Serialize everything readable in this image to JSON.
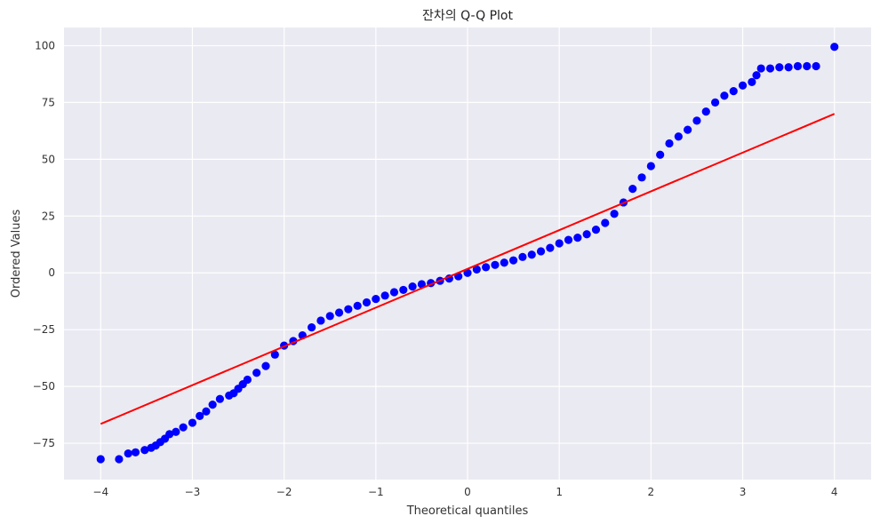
{
  "chart_data": {
    "type": "scatter",
    "title": "잔차의 Q-Q Plot",
    "xlabel": "Theoretical quantiles",
    "ylabel": "Ordered Values",
    "xlim": [
      -4.4,
      4.4
    ],
    "ylim": [
      -91,
      108
    ],
    "xticks": [
      -4,
      -3,
      -2,
      -1,
      0,
      1,
      2,
      3,
      4
    ],
    "xtick_labels": [
      "−4",
      "−3",
      "−2",
      "−1",
      "0",
      "1",
      "2",
      "3",
      "4"
    ],
    "yticks": [
      -75,
      -50,
      -25,
      0,
      25,
      50,
      75,
      100
    ],
    "ytick_labels": [
      "−75",
      "−50",
      "−25",
      "0",
      "25",
      "50",
      "75",
      "100"
    ],
    "grid": true,
    "colors": {
      "background": "#eaeaf2",
      "grid": "#ffffff",
      "points": "#0000ff",
      "fit_line": "#ff0000"
    },
    "series": [
      {
        "kind": "points",
        "points": [
          [
            -4.0,
            -82
          ],
          [
            -3.8,
            -82
          ],
          [
            -3.7,
            -79.5
          ],
          [
            -3.62,
            -79
          ],
          [
            -3.52,
            -78
          ],
          [
            -3.45,
            -77
          ],
          [
            -3.4,
            -76
          ],
          [
            -3.35,
            -74.5
          ],
          [
            -3.3,
            -73
          ],
          [
            -3.25,
            -71
          ],
          [
            -3.18,
            -70
          ],
          [
            -3.1,
            -68
          ],
          [
            -3.0,
            -66
          ],
          [
            -2.92,
            -63
          ],
          [
            -2.85,
            -61
          ],
          [
            -2.78,
            -58
          ],
          [
            -2.7,
            -55.5
          ],
          [
            -2.6,
            -54
          ],
          [
            -2.55,
            -53
          ],
          [
            -2.5,
            -51
          ],
          [
            -2.45,
            -49
          ],
          [
            -2.4,
            -47
          ],
          [
            -2.3,
            -44
          ],
          [
            -2.2,
            -41
          ],
          [
            -2.1,
            -36
          ],
          [
            -2.0,
            -32
          ],
          [
            -1.9,
            -30
          ],
          [
            -1.8,
            -27.5
          ],
          [
            -1.7,
            -24
          ],
          [
            -1.6,
            -21
          ],
          [
            -1.5,
            -19
          ],
          [
            -1.4,
            -17.5
          ],
          [
            -1.3,
            -16
          ],
          [
            -1.2,
            -14.5
          ],
          [
            -1.1,
            -13
          ],
          [
            -1.0,
            -11.5
          ],
          [
            -0.9,
            -10
          ],
          [
            -0.8,
            -8.5
          ],
          [
            -0.7,
            -7.5
          ],
          [
            -0.6,
            -6
          ],
          [
            -0.5,
            -5
          ],
          [
            -0.4,
            -4.5
          ],
          [
            -0.3,
            -3.5
          ],
          [
            -0.2,
            -2.5
          ],
          [
            -0.1,
            -1.5
          ],
          [
            0.0,
            0
          ],
          [
            0.1,
            1.5
          ],
          [
            0.2,
            2.5
          ],
          [
            0.3,
            3.5
          ],
          [
            0.4,
            4.5
          ],
          [
            0.5,
            5.5
          ],
          [
            0.6,
            7
          ],
          [
            0.7,
            8
          ],
          [
            0.8,
            9.5
          ],
          [
            0.9,
            11
          ],
          [
            1.0,
            13
          ],
          [
            1.1,
            14.5
          ],
          [
            1.2,
            15.5
          ],
          [
            1.3,
            17
          ],
          [
            1.4,
            19
          ],
          [
            1.5,
            22
          ],
          [
            1.6,
            26
          ],
          [
            1.7,
            31
          ],
          [
            1.8,
            37
          ],
          [
            1.9,
            42
          ],
          [
            2.0,
            47
          ],
          [
            2.1,
            52
          ],
          [
            2.2,
            57
          ],
          [
            2.3,
            60
          ],
          [
            2.4,
            63
          ],
          [
            2.5,
            67
          ],
          [
            2.6,
            71
          ],
          [
            2.7,
            75
          ],
          [
            2.8,
            78
          ],
          [
            2.9,
            80
          ],
          [
            3.0,
            82.5
          ],
          [
            3.1,
            84
          ],
          [
            3.15,
            87
          ],
          [
            3.2,
            90
          ],
          [
            3.3,
            90
          ],
          [
            3.4,
            90.5
          ],
          [
            3.5,
            90.5
          ],
          [
            3.6,
            91
          ],
          [
            3.7,
            91
          ],
          [
            3.8,
            91
          ],
          [
            4.0,
            99.5
          ]
        ]
      },
      {
        "kind": "fit_line",
        "points": [
          [
            -4.0,
            -66.5
          ],
          [
            4.0,
            70
          ]
        ]
      }
    ]
  }
}
